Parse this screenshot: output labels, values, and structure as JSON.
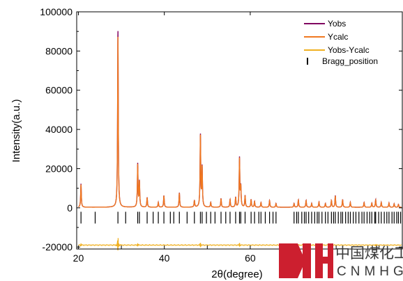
{
  "chart_data": {
    "type": "line",
    "xlabel": "2θ(degree)",
    "ylabel": "Intensity(a.u.)",
    "xlim": [
      19.6,
      95.4
    ],
    "ylim": [
      -21000,
      100000
    ],
    "x_ticks": [
      20,
      40,
      60
    ],
    "y_ticks": [
      -20000,
      0,
      20000,
      40000,
      60000,
      80000,
      100000
    ],
    "x_tick_labels": [
      "20",
      "40",
      "60"
    ],
    "y_tick_labels": [
      "-20000",
      "0",
      "20000",
      "40000",
      "60000",
      "80000",
      "100000"
    ],
    "legend_position": "top-right",
    "baseline": 300,
    "series": [
      {
        "name": "Yobs",
        "color": "#800060",
        "peaks": [
          [
            20.6,
            12000
          ],
          [
            29.2,
            91000
          ],
          [
            33.8,
            22000
          ],
          [
            34.2,
            13000
          ],
          [
            36.0,
            5000
          ],
          [
            38.6,
            2500
          ],
          [
            39.9,
            6000
          ],
          [
            43.5,
            7500
          ],
          [
            47.0,
            3500
          ],
          [
            48.4,
            37000
          ],
          [
            48.8,
            20000
          ],
          [
            50.8,
            2500
          ],
          [
            53.2,
            4500
          ],
          [
            55.3,
            4000
          ],
          [
            56.6,
            5000
          ],
          [
            57.5,
            25000
          ],
          [
            57.8,
            10000
          ],
          [
            58.8,
            6000
          ],
          [
            60.2,
            4000
          ],
          [
            61.0,
            3000
          ],
          [
            62.5,
            2500
          ],
          [
            64.5,
            3500
          ],
          [
            66.0,
            2000
          ],
          [
            70.2,
            2000
          ],
          [
            71.2,
            3800
          ],
          [
            73.0,
            3500
          ],
          [
            74.3,
            2000
          ],
          [
            76.0,
            2800
          ],
          [
            77.5,
            2000
          ],
          [
            78.9,
            3500
          ],
          [
            79.8,
            6000
          ],
          [
            81.5,
            4000
          ],
          [
            83.3,
            2500
          ],
          [
            86.5,
            2500
          ],
          [
            88.3,
            2200
          ],
          [
            89.2,
            4000
          ],
          [
            90.5,
            2500
          ],
          [
            92.3,
            2200
          ],
          [
            93.5,
            1800
          ],
          [
            94.5,
            1500
          ]
        ]
      },
      {
        "name": "Ycalc",
        "color": "#f07820",
        "peaks": [
          [
            20.6,
            11600
          ],
          [
            29.2,
            88000
          ],
          [
            33.8,
            21500
          ],
          [
            34.2,
            12800
          ],
          [
            36.0,
            4900
          ],
          [
            38.6,
            2400
          ],
          [
            39.9,
            5900
          ],
          [
            43.5,
            7300
          ],
          [
            47.0,
            3400
          ],
          [
            48.4,
            36500
          ],
          [
            48.8,
            19700
          ],
          [
            50.8,
            2400
          ],
          [
            53.2,
            4400
          ],
          [
            55.3,
            3900
          ],
          [
            56.6,
            4900
          ],
          [
            57.5,
            24500
          ],
          [
            57.8,
            9800
          ],
          [
            58.8,
            5900
          ],
          [
            60.2,
            3900
          ],
          [
            61.0,
            2900
          ],
          [
            62.5,
            2400
          ],
          [
            64.5,
            3400
          ],
          [
            66.0,
            1900
          ],
          [
            70.2,
            1900
          ],
          [
            71.2,
            3700
          ],
          [
            73.0,
            3400
          ],
          [
            74.3,
            1900
          ],
          [
            76.0,
            2700
          ],
          [
            77.5,
            1900
          ],
          [
            78.9,
            3400
          ],
          [
            79.8,
            5800
          ],
          [
            81.5,
            3900
          ],
          [
            83.3,
            2400
          ],
          [
            86.5,
            2400
          ],
          [
            88.3,
            2100
          ],
          [
            89.2,
            3800
          ],
          [
            90.5,
            2400
          ],
          [
            92.3,
            2100
          ],
          [
            93.5,
            1700
          ],
          [
            94.5,
            1400
          ]
        ]
      },
      {
        "name": "Yobs-Ycalc",
        "color": "#f0b020",
        "offset": -19000,
        "diff_spikes": [
          [
            20.6,
            600
          ],
          [
            29.2,
            4500
          ],
          [
            33.8,
            800
          ],
          [
            48.4,
            1200
          ],
          [
            57.5,
            900
          ],
          [
            89.2,
            400
          ]
        ]
      },
      {
        "name": "Bragg_position",
        "color": "#000000",
        "y_range": [
          -8000,
          -2000
        ],
        "positions": [
          20.6,
          23.9,
          29.2,
          31.0,
          33.8,
          34.2,
          36.0,
          37.4,
          38.6,
          39.9,
          41.4,
          42.2,
          43.5,
          45.3,
          47.0,
          48.4,
          48.8,
          49.8,
          50.8,
          51.8,
          53.2,
          54.3,
          55.3,
          56.6,
          57.5,
          57.8,
          58.8,
          60.2,
          61.0,
          62.0,
          62.5,
          63.5,
          64.5,
          65.3,
          66.0,
          70.2,
          70.8,
          71.2,
          72.0,
          72.6,
          73.0,
          73.6,
          74.3,
          75.0,
          75.6,
          76.0,
          76.7,
          77.5,
          78.1,
          78.9,
          79.4,
          79.8,
          80.5,
          81.1,
          81.5,
          82.2,
          82.8,
          83.3,
          84.0,
          84.6,
          85.3,
          86.0,
          86.5,
          87.2,
          87.8,
          88.3,
          89.0,
          89.2,
          89.9,
          90.5,
          91.2,
          91.8,
          92.3,
          93.0,
          93.5,
          94.1,
          94.5,
          95.0
        ]
      }
    ]
  },
  "watermark": {
    "chinese": "中国煤化工",
    "latin": "CNMHG",
    "color": "#cc1f2f"
  }
}
